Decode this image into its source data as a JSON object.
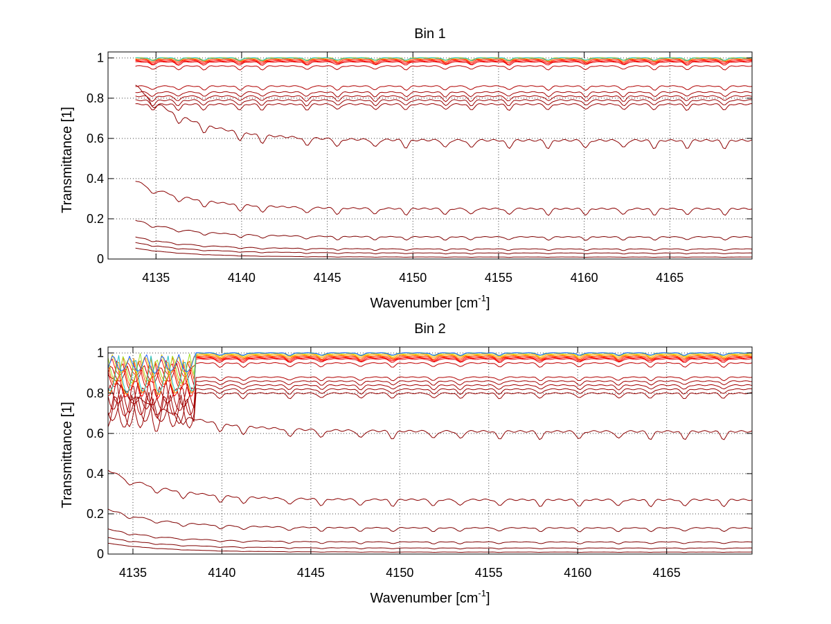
{
  "chart_data": [
    {
      "type": "line",
      "title": "Bin 1",
      "xlabel": "Wavenumber [cm",
      "xlabel_sup": "-1",
      "xlabel_suffix": "]",
      "ylabel": "Transmittance [1]",
      "xlim": [
        4132.2,
        4169.8
      ],
      "ylim": [
        0,
        1.03
      ],
      "xticks": [
        4135,
        4140,
        4145,
        4150,
        4155,
        4160,
        4165
      ],
      "yticks": [
        0,
        0.2,
        0.4,
        0.6,
        0.8,
        1
      ],
      "grid": true,
      "curve_start": 4133.8,
      "curve_end": 4169.8,
      "series": [
        {
          "level": 0.0,
          "color": "#7f0000"
        },
        {
          "level": 0.01,
          "color": "#7f0000"
        },
        {
          "level": 0.03,
          "color": "#7f0000"
        },
        {
          "level": 0.05,
          "color": "#7f0000"
        },
        {
          "level": 0.11,
          "color": "#7f0000"
        },
        {
          "level": 0.25,
          "color": "#8b0000"
        },
        {
          "level": 0.59,
          "color": "#8b0000"
        },
        {
          "level": 0.77,
          "color": "#990000"
        },
        {
          "level": 0.79,
          "color": "#990000"
        },
        {
          "level": 0.81,
          "color": "#a30000"
        },
        {
          "level": 0.83,
          "color": "#a30000"
        },
        {
          "level": 0.86,
          "color": "#b00000"
        },
        {
          "level": 0.96,
          "color": "#c00000"
        },
        {
          "level": 0.98,
          "color": "#e00000"
        },
        {
          "level": 0.985,
          "color": "#ff0000"
        },
        {
          "level": 0.99,
          "color": "#ff2000"
        },
        {
          "level": 0.995,
          "color": "#ff5a00"
        },
        {
          "level": 1.0,
          "color": "#ff9a00"
        },
        {
          "level": 1.0,
          "color": "#f0d000"
        },
        {
          "level": 1.0,
          "color": "#9fdf20"
        },
        {
          "level": 1.0,
          "color": "#20c0c0"
        }
      ]
    },
    {
      "type": "line",
      "title": "Bin 2",
      "xlabel": "Wavenumber [cm",
      "xlabel_sup": "-1",
      "xlabel_suffix": "]",
      "ylabel": "Transmittance [1]",
      "xlim": [
        4133.6,
        4169.8
      ],
      "ylim": [
        0,
        1.03
      ],
      "xticks": [
        4135,
        4140,
        4145,
        4150,
        4155,
        4160,
        4165
      ],
      "yticks": [
        0,
        0.2,
        0.4,
        0.6,
        0.8,
        1
      ],
      "grid": true,
      "curve_start": 4133.6,
      "curve_end": 4169.8,
      "series": [
        {
          "level": 0.0,
          "color": "#7f0000"
        },
        {
          "level": 0.01,
          "color": "#7f0000"
        },
        {
          "level": 0.03,
          "color": "#7f0000"
        },
        {
          "level": 0.06,
          "color": "#7f0000"
        },
        {
          "level": 0.13,
          "color": "#7f0000"
        },
        {
          "level": 0.27,
          "color": "#8b0000"
        },
        {
          "level": 0.61,
          "color": "#8b0000"
        },
        {
          "level": 0.8,
          "color": "#990000"
        },
        {
          "level": 0.82,
          "color": "#990000"
        },
        {
          "level": 0.84,
          "color": "#a30000"
        },
        {
          "level": 0.86,
          "color": "#a30000"
        },
        {
          "level": 0.88,
          "color": "#b00000"
        },
        {
          "level": 0.95,
          "color": "#c00000"
        },
        {
          "level": 0.97,
          "color": "#e00000"
        },
        {
          "level": 0.975,
          "color": "#ff0000"
        },
        {
          "level": 0.98,
          "color": "#ff2000"
        },
        {
          "level": 0.985,
          "color": "#ff5a00"
        },
        {
          "level": 0.99,
          "color": "#ff9a00"
        },
        {
          "level": 0.995,
          "color": "#f0d000"
        },
        {
          "level": 1.0,
          "color": "#9fdf20"
        },
        {
          "level": 1.0,
          "color": "#20c0c0"
        },
        {
          "level": 1.0,
          "color": "#2060ff"
        }
      ]
    }
  ]
}
